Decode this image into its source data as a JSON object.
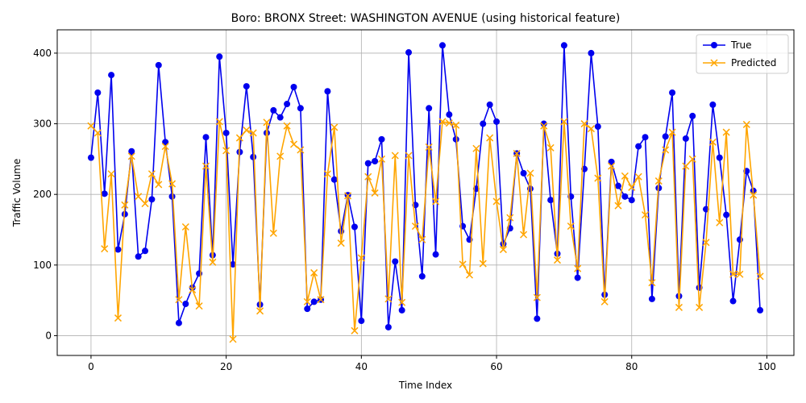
{
  "chart_data": {
    "type": "line",
    "title": "Boro: BRONX Street: WASHINGTON AVENUE (using historical feature)",
    "xlabel": "Time Index",
    "ylabel": "Traffic Volume",
    "xlim": [
      -5,
      104
    ],
    "ylim": [
      -28,
      433
    ],
    "xticks": [
      0,
      20,
      40,
      60,
      80,
      100
    ],
    "yticks": [
      0,
      100,
      200,
      300,
      400
    ],
    "grid": true,
    "legend_position": "top-right",
    "series": [
      {
        "name": "True",
        "color": "#0000ee",
        "marker": "circle",
        "values": [
          252,
          344,
          201,
          369,
          122,
          172,
          261,
          112,
          120,
          193,
          383,
          274,
          197,
          18,
          45,
          68,
          88,
          281,
          114,
          395,
          287,
          101,
          260,
          353,
          253,
          44,
          287,
          319,
          309,
          328,
          352,
          322,
          38,
          48,
          51,
          346,
          221,
          148,
          199,
          154,
          21,
          244,
          247,
          278,
          12,
          105,
          36,
          401,
          185,
          84,
          322,
          115,
          411,
          313,
          278,
          155,
          136,
          208,
          300,
          327,
          303,
          130,
          152,
          258,
          230,
          208,
          24,
          300,
          192,
          116,
          411,
          197,
          82,
          236,
          400,
          296,
          58,
          246,
          212,
          197,
          192,
          268,
          281,
          52,
          209,
          282,
          344,
          56,
          279,
          311,
          68,
          179,
          327,
          252,
          171,
          49,
          136,
          233,
          205,
          36
        ]
      },
      {
        "name": "Predicted",
        "color": "#ffa500",
        "marker": "x",
        "values": [
          297,
          287,
          123,
          229,
          25,
          185,
          254,
          197,
          187,
          229,
          214,
          268,
          215,
          51,
          154,
          65,
          42,
          240,
          104,
          303,
          262,
          -5,
          280,
          291,
          287,
          35,
          302,
          145,
          254,
          297,
          271,
          263,
          48,
          89,
          51,
          229,
          295,
          131,
          198,
          7,
          110,
          225,
          202,
          250,
          52,
          255,
          47,
          255,
          155,
          136,
          267,
          190,
          303,
          301,
          298,
          101,
          86,
          265,
          102,
          280,
          190,
          122,
          167,
          258,
          143,
          230,
          54,
          297,
          266,
          107,
          303,
          155,
          95,
          300,
          293,
          223,
          48,
          240,
          184,
          226,
          210,
          225,
          171,
          75,
          219,
          263,
          288,
          40,
          240,
          250,
          40,
          132,
          274,
          160,
          288,
          87,
          87,
          299,
          199,
          84
        ]
      }
    ]
  }
}
